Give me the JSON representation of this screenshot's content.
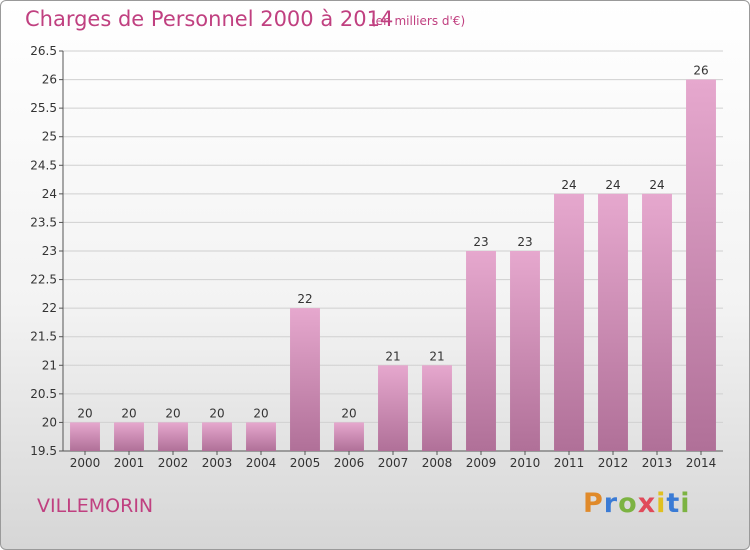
{
  "header": {
    "title": "Charges de Personnel 2000 à 2014",
    "subtitle": "(en milliers d'€)"
  },
  "footer": {
    "city": "VILLEMORIN",
    "logo_text": "Proxiti",
    "logo_colors": [
      "#e08a2a",
      "#3a7bd5",
      "#7cb342",
      "#e04a5a",
      "#e0c020",
      "#3a7bd5",
      "#7cb342"
    ]
  },
  "colors": {
    "accent": "#c04080",
    "bar_top": "#e6a8ce",
    "bar_bottom": "#b07098"
  },
  "chart_data": {
    "type": "bar",
    "title": "Charges de Personnel 2000 à 2014",
    "subtitle": "(en milliers d'€)",
    "categories": [
      "2000",
      "2001",
      "2002",
      "2003",
      "2004",
      "2005",
      "2006",
      "2007",
      "2008",
      "2009",
      "2010",
      "2011",
      "2012",
      "2013",
      "2014"
    ],
    "values": [
      20,
      20,
      20,
      20,
      20,
      22,
      20,
      21,
      21,
      23,
      23,
      24,
      24,
      24,
      26
    ],
    "data_labels": [
      "20",
      "20",
      "20",
      "20",
      "20",
      "22",
      "20",
      "21",
      "21",
      "23",
      "23",
      "24",
      "24",
      "24",
      "26"
    ],
    "ylim": [
      19.5,
      26.5
    ],
    "yticks": [
      19.5,
      20,
      20.5,
      21,
      21.5,
      22,
      22.5,
      23,
      23.5,
      24,
      24.5,
      25,
      25.5,
      26,
      26.5
    ],
    "ytick_labels": [
      "19.5",
      "20",
      "20.5",
      "21",
      "21.5",
      "22",
      "22.5",
      "23",
      "23.5",
      "24",
      "24.5",
      "25",
      "25.5",
      "26",
      "26.5"
    ],
    "grid": true
  }
}
